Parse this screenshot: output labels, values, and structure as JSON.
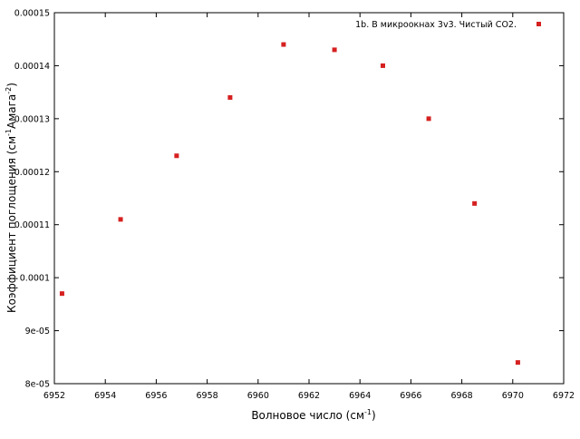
{
  "chart_data": {
    "type": "scatter",
    "title": "",
    "xlabel": "Волновое число (см",
    "xlabel_sup": "-1",
    "xlabel_tail": ")",
    "ylabel": "Коэффициент поглощения (см",
    "ylabel_sup1": "-1",
    "ylabel_mid": "Амага",
    "ylabel_sup2": "-2",
    "ylabel_tail": ")",
    "xlim": [
      6952,
      6972
    ],
    "ylim": [
      8e-05,
      0.00015
    ],
    "x_ticks": [
      6952,
      6954,
      6956,
      6958,
      6960,
      6962,
      6964,
      6966,
      6968,
      6970,
      6972
    ],
    "x_tick_labels": [
      "6952",
      "6954",
      "6956",
      "6958",
      "6960",
      "6962",
      "6964",
      "6966",
      "6968",
      "6970",
      "6972"
    ],
    "y_ticks": [
      8e-05,
      9e-05,
      0.0001,
      0.00011,
      0.00012,
      0.00013,
      0.00014,
      0.00015
    ],
    "y_tick_labels": [
      "8e-05",
      "9e-05",
      "0.0001",
      "0.00011",
      "0.00012",
      "0.00013",
      "0.00014",
      "0.00015"
    ],
    "grid": false,
    "legend_position": "top-right",
    "series": [
      {
        "name": "1b. В микроокнах 3v3. Чистый CO2.",
        "color": "#d62020",
        "marker": "square",
        "x": [
          6952.3,
          6954.6,
          6956.8,
          6958.9,
          6961.0,
          6963.0,
          6964.9,
          6966.7,
          6968.5,
          6970.2
        ],
        "y": [
          9.7e-05,
          0.000111,
          0.000123,
          0.000134,
          0.000144,
          0.000143,
          0.00014,
          0.00013,
          0.000114,
          8.4e-05
        ]
      }
    ]
  }
}
